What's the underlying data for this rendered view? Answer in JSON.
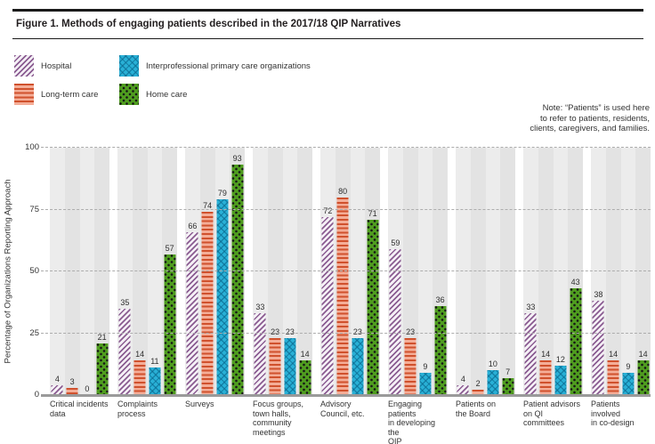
{
  "figure": {
    "title": "Figure 1. Methods of engaging patients described in the 2017/18 QIP Narratives"
  },
  "legend": [
    {
      "key": "hospital",
      "label": "Hospital"
    },
    {
      "key": "longterm",
      "label": "Long-term care"
    },
    {
      "key": "interprofessional",
      "label": "Interprofessional primary care organizations"
    },
    {
      "key": "homecare",
      "label": "Home care"
    }
  ],
  "note": {
    "lines": [
      "Note: “Patients” is used here",
      "to refer to patients, residents,",
      "clients, caregivers, and families."
    ]
  },
  "chart_data": {
    "type": "bar",
    "title": "Methods of engaging patients described in the 2017/18 QIP Narratives",
    "ylabel": "Percentage of Organizations Reporting Approach",
    "xlabel": "",
    "ylim": [
      0,
      100
    ],
    "yticks": [
      0,
      25,
      50,
      75,
      100
    ],
    "grid": "horizontal dashed at 25/50/75/100, solid gray baseline at 0",
    "legend_position": "top-left",
    "categories": [
      "Critical incidents data",
      "Complaints process",
      "Surveys",
      "Focus groups, town halls, community meetings",
      "Advisory Council, etc.",
      "Engaging patients in developing the QIP",
      "Patients on the Board",
      "Patient advisors on QI committees",
      "Patients involved in co-design"
    ],
    "category_label_lines": [
      [
        "Critical incidents",
        "data"
      ],
      [
        "Complaints",
        "process"
      ],
      [
        "Surveys"
      ],
      [
        "Focus groups,",
        "town halls,",
        "community",
        "meetings"
      ],
      [
        "Advisory",
        "Council, etc."
      ],
      [
        "Engaging patients",
        "in developing the",
        "QIP"
      ],
      [
        "Patients on",
        "the Board"
      ],
      [
        "Patient advisors",
        "on QI committees"
      ],
      [
        "Patients involved",
        "in co-design"
      ]
    ],
    "series": [
      {
        "name": "Hospital",
        "key": "hospital",
        "pattern": "purple diagonal stripes",
        "color": "#8a5c91",
        "values": [
          4,
          35,
          66,
          33,
          72,
          59,
          4,
          33,
          38
        ]
      },
      {
        "name": "Long-term care",
        "key": "longterm",
        "pattern": "orange horizontal stripes",
        "color": "#d0512d",
        "values": [
          3,
          14,
          74,
          23,
          80,
          23,
          2,
          14,
          14
        ]
      },
      {
        "name": "Interprofessional primary care organizations",
        "key": "interprofessional",
        "pattern": "cyan crosshatch",
        "color": "#29b0d6",
        "values": [
          0,
          11,
          79,
          23,
          23,
          9,
          10,
          12,
          9
        ]
      },
      {
        "name": "Home care",
        "key": "homecare",
        "pattern": "green with black dots",
        "color": "#4f9d1f",
        "values": [
          21,
          57,
          93,
          14,
          71,
          36,
          7,
          43,
          14
        ]
      }
    ]
  }
}
